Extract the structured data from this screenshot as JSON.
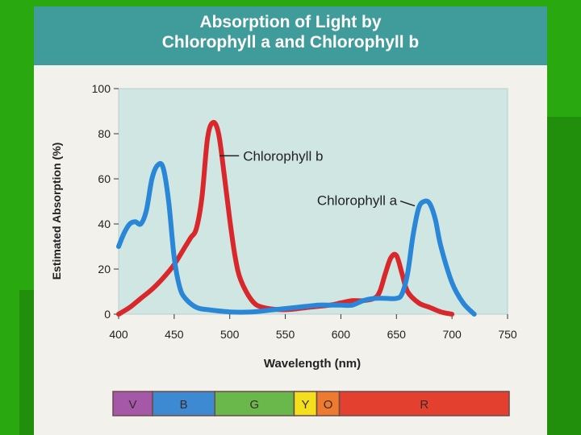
{
  "title": {
    "line1": "Absorption of Light by",
    "line2": "Chlorophyll a and Chlorophyll b"
  },
  "colors": {
    "background": "#2aa80f",
    "header": "#3f9c9b",
    "plot_area": "#cfe6e3",
    "chlorophyll_a": "#2a86d6",
    "chlorophyll_b": "#d8282c"
  },
  "chart_data": {
    "type": "line",
    "xlabel": "Wavelength (nm)",
    "ylabel": "Estimated Absorption (%)",
    "xlim": [
      400,
      750
    ],
    "ylim": [
      0,
      100
    ],
    "xticks": [
      400,
      450,
      500,
      550,
      600,
      650,
      700,
      750
    ],
    "yticks": [
      0,
      20,
      40,
      60,
      80,
      100
    ],
    "grid": false,
    "series": [
      {
        "name": "Chlorophyll b",
        "color": "#d8282c",
        "x": [
          400,
          410,
          420,
          430,
          440,
          450,
          460,
          465,
          470,
          475,
          480,
          485,
          490,
          495,
          500,
          505,
          510,
          520,
          530,
          550,
          570,
          590,
          600,
          610,
          620,
          630,
          635,
          640,
          645,
          650,
          655,
          660,
          670,
          680,
          690,
          700
        ],
        "y": [
          0,
          3,
          7,
          11,
          16,
          22,
          30,
          34,
          38,
          52,
          78,
          85,
          80,
          62,
          42,
          25,
          15,
          6,
          3,
          2,
          3,
          4,
          5,
          6,
          6,
          7,
          10,
          18,
          25,
          26,
          18,
          10,
          5,
          3,
          1,
          0
        ]
      },
      {
        "name": "Chlorophyll a",
        "color": "#2a86d6",
        "x": [
          400,
          405,
          410,
          415,
          420,
          425,
          430,
          435,
          440,
          445,
          450,
          455,
          460,
          470,
          480,
          500,
          520,
          540,
          560,
          580,
          590,
          600,
          610,
          620,
          630,
          640,
          650,
          655,
          660,
          665,
          670,
          675,
          680,
          685,
          690,
          700,
          710,
          720
        ],
        "y": [
          30,
          36,
          40,
          41,
          40,
          46,
          60,
          66,
          65,
          50,
          25,
          12,
          7,
          3,
          2,
          1,
          1,
          2,
          3,
          4,
          4,
          4,
          4,
          6,
          7,
          7,
          7,
          9,
          18,
          35,
          47,
          50,
          49,
          42,
          30,
          14,
          5,
          0
        ]
      }
    ],
    "annotations": [
      {
        "text": "Chlorophyll b",
        "target": [
          488,
          72
        ]
      },
      {
        "text": "Chlorophyll a",
        "target": [
          668,
          48
        ]
      }
    ],
    "spectrum_bar": [
      {
        "label": "V",
        "color": "#a658a8",
        "from": 400,
        "to": 435
      },
      {
        "label": "B",
        "color": "#3e8ad2",
        "from": 435,
        "to": 490
      },
      {
        "label": "G",
        "color": "#6ab84c",
        "from": 490,
        "to": 560
      },
      {
        "label": "Y",
        "color": "#f3df1b",
        "from": 560,
        "to": 580
      },
      {
        "label": "O",
        "color": "#ee7a30",
        "from": 580,
        "to": 600
      },
      {
        "label": "R",
        "color": "#e44030",
        "from": 600,
        "to": 750
      }
    ]
  }
}
